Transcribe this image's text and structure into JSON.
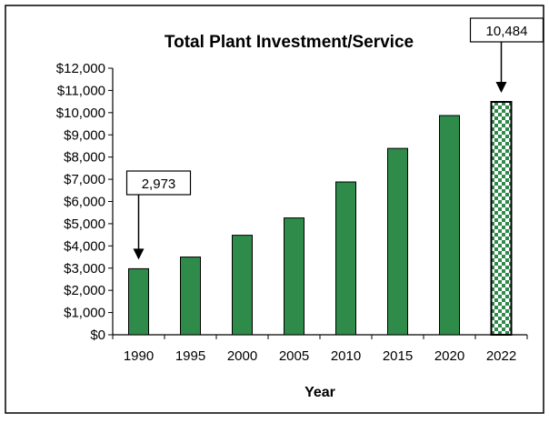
{
  "chart_data": {
    "type": "bar",
    "title": "Total Plant Investment/Service",
    "xlabel": "Year",
    "ylabel": "",
    "categories": [
      "1990",
      "1995",
      "2000",
      "2005",
      "2010",
      "2015",
      "2020",
      "2022"
    ],
    "values": [
      2973,
      3500,
      4480,
      5260,
      6880,
      8390,
      9870,
      10484
    ],
    "ylim": [
      0,
      12000
    ],
    "ytick_step": 1000,
    "ytick_labels": [
      "$0",
      "$1,000",
      "$2,000",
      "$3,000",
      "$4,000",
      "$5,000",
      "$6,000",
      "$7,000",
      "$8,000",
      "$9,000",
      "$10,000",
      "$11,000",
      "$12,000"
    ],
    "grid": false,
    "legend": "none",
    "bar_color": "#2e8b4a",
    "highlight_pattern_color": "#2e8b4a",
    "highlight_category": "2022",
    "annotations": [
      {
        "category": "1990",
        "text": "2,973"
      },
      {
        "category": "2022",
        "text": "10,484"
      }
    ]
  }
}
